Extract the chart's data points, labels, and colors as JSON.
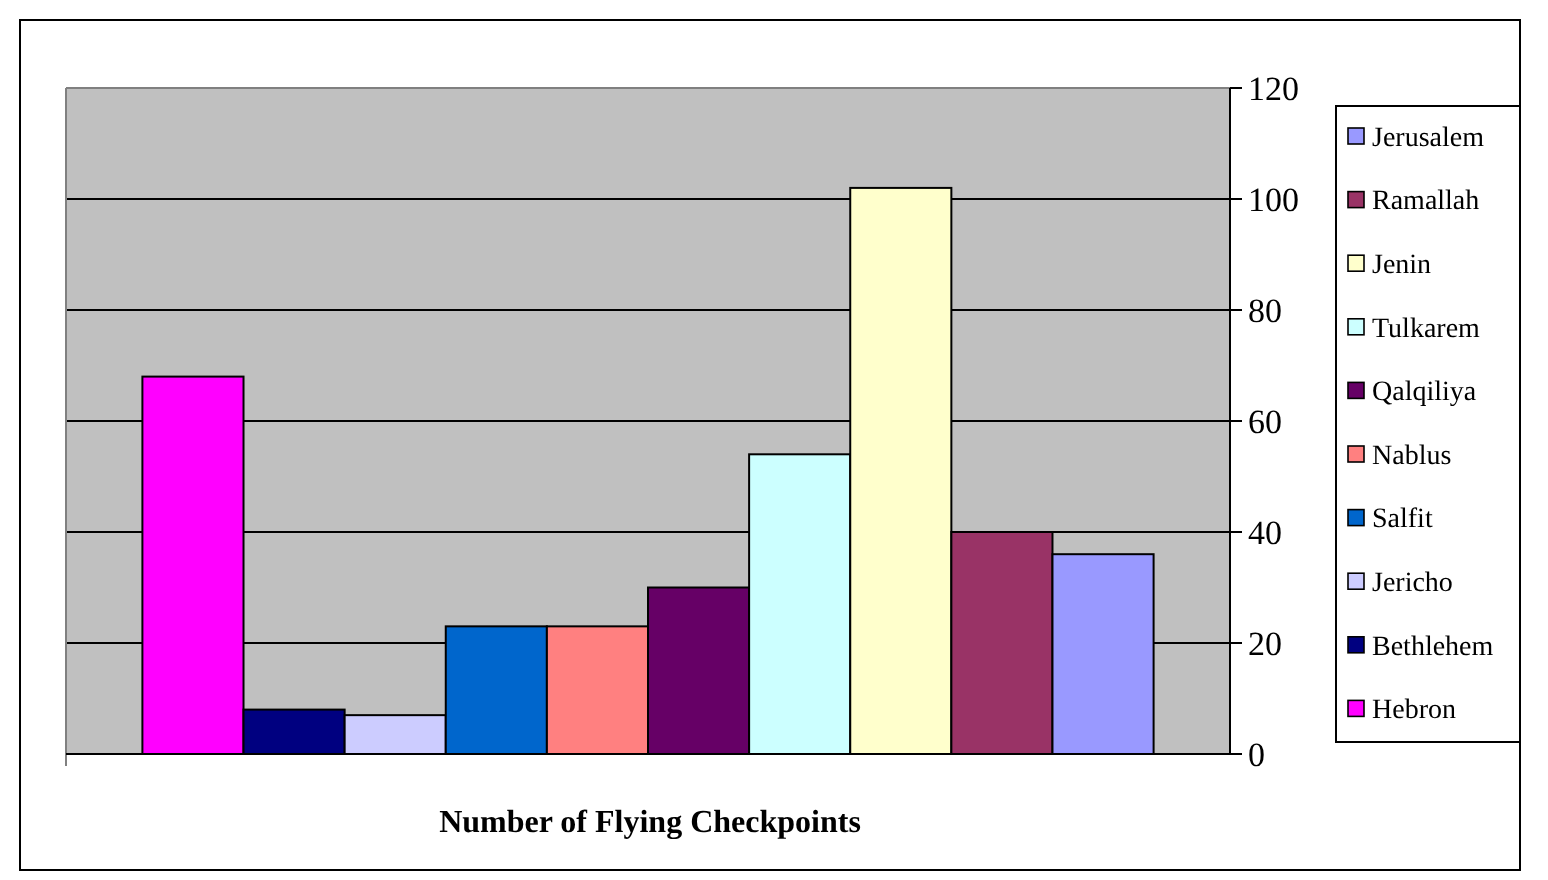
{
  "chart_data": {
    "type": "bar",
    "xlabel": "Number of Flying Checkpoints",
    "categories": [
      null
    ],
    "series": [
      {
        "name": "Hebron",
        "color": "#ff00ff",
        "values": [
          68
        ]
      },
      {
        "name": "Bethlehem",
        "color": "#000080",
        "values": [
          8
        ]
      },
      {
        "name": "Jericho",
        "color": "#ccccff",
        "values": [
          7
        ]
      },
      {
        "name": "Salfit",
        "color": "#0066cc",
        "values": [
          23
        ]
      },
      {
        "name": "Nablus",
        "color": "#ff8080",
        "values": [
          23
        ]
      },
      {
        "name": "Qalqiliya",
        "color": "#660066",
        "values": [
          30
        ]
      },
      {
        "name": "Tulkarem",
        "color": "#ccffff",
        "values": [
          54
        ]
      },
      {
        "name": "Jenin",
        "color": "#ffffcc",
        "values": [
          102
        ]
      },
      {
        "name": "Ramallah",
        "color": "#993366",
        "values": [
          40
        ]
      },
      {
        "name": "Jerusalem",
        "color": "#9999ff",
        "values": [
          36
        ]
      }
    ],
    "ylim": [
      0,
      120
    ],
    "yticks": [
      0,
      20,
      40,
      60,
      80,
      100,
      120
    ],
    "grid": "y",
    "legend": "right",
    "tick_labels": "y"
  }
}
